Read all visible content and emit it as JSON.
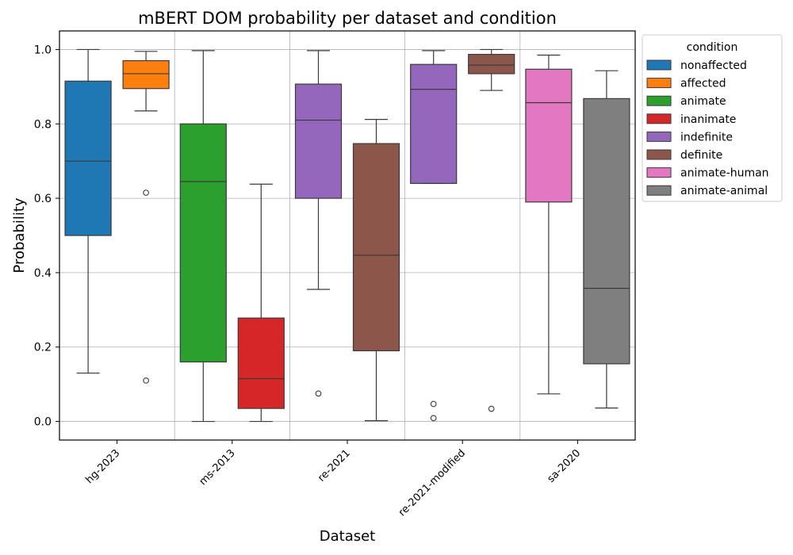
{
  "chart_data": {
    "type": "box",
    "title": "mBERT DOM probability per dataset and condition",
    "xlabel": "Dataset",
    "ylabel": "Probability",
    "ylim": [
      -0.05,
      1.05
    ],
    "yticks": [
      "0.0",
      "0.2",
      "0.4",
      "0.6",
      "0.8",
      "1.0"
    ],
    "categories": [
      "hg-2023",
      "ms-2013",
      "re-2021",
      "re-2021-modified",
      "sa-2020"
    ],
    "grid": true,
    "legend": {
      "title": "condition",
      "placement": "right-outside-top",
      "entries": [
        {
          "name": "nonaffected",
          "color": "#1f77b4"
        },
        {
          "name": "affected",
          "color": "#ff7f0e"
        },
        {
          "name": "animate",
          "color": "#2ca02c"
        },
        {
          "name": "inanimate",
          "color": "#d62728"
        },
        {
          "name": "indefinite",
          "color": "#9467bd"
        },
        {
          "name": "definite",
          "color": "#8c564b"
        },
        {
          "name": "animate-human",
          "color": "#e377c2"
        },
        {
          "name": "animate-animal",
          "color": "#7f7f7f"
        }
      ]
    },
    "boxes": [
      {
        "category": "hg-2023",
        "condition": "nonaffected",
        "color": "#1f77b4",
        "whisker_low": 0.13,
        "q1": 0.5,
        "median": 0.7,
        "q3": 0.915,
        "whisker_high": 1.0,
        "outliers": []
      },
      {
        "category": "hg-2023",
        "condition": "affected",
        "color": "#ff7f0e",
        "whisker_low": 0.835,
        "q1": 0.895,
        "median": 0.935,
        "q3": 0.97,
        "whisker_high": 0.995,
        "outliers": [
          0.615,
          0.11
        ]
      },
      {
        "category": "ms-2013",
        "condition": "animate",
        "color": "#2ca02c",
        "whisker_low": 0.0,
        "q1": 0.16,
        "median": 0.645,
        "q3": 0.8,
        "whisker_high": 0.997,
        "outliers": []
      },
      {
        "category": "ms-2013",
        "condition": "inanimate",
        "color": "#d62728",
        "whisker_low": 0.0,
        "q1": 0.035,
        "median": 0.115,
        "q3": 0.278,
        "whisker_high": 0.638,
        "outliers": []
      },
      {
        "category": "re-2021",
        "condition": "indefinite",
        "color": "#9467bd",
        "whisker_low": 0.355,
        "q1": 0.6,
        "median": 0.81,
        "q3": 0.907,
        "whisker_high": 0.997,
        "outliers": [
          0.075
        ]
      },
      {
        "category": "re-2021",
        "condition": "definite",
        "color": "#8c564b",
        "whisker_low": 0.002,
        "q1": 0.19,
        "median": 0.447,
        "q3": 0.747,
        "whisker_high": 0.812,
        "outliers": []
      },
      {
        "category": "re-2021-modified",
        "condition": "indefinite",
        "color": "#9467bd",
        "whisker_low": 0.64,
        "q1": 0.64,
        "median": 0.893,
        "q3": 0.96,
        "whisker_high": 0.997,
        "outliers": [
          0.047,
          0.009
        ]
      },
      {
        "category": "re-2021-modified",
        "condition": "definite",
        "color": "#8c564b",
        "whisker_low": 0.89,
        "q1": 0.935,
        "median": 0.958,
        "q3": 0.987,
        "whisker_high": 1.0,
        "outliers": [
          0.034
        ]
      },
      {
        "category": "sa-2020",
        "condition": "animate-human",
        "color": "#e377c2",
        "whisker_low": 0.074,
        "q1": 0.59,
        "median": 0.857,
        "q3": 0.947,
        "whisker_high": 0.985,
        "outliers": []
      },
      {
        "category": "sa-2020",
        "condition": "animate-animal",
        "color": "#7f7f7f",
        "whisker_low": 0.036,
        "q1": 0.155,
        "median": 0.358,
        "q3": 0.868,
        "whisker_high": 0.943,
        "outliers": []
      }
    ]
  }
}
